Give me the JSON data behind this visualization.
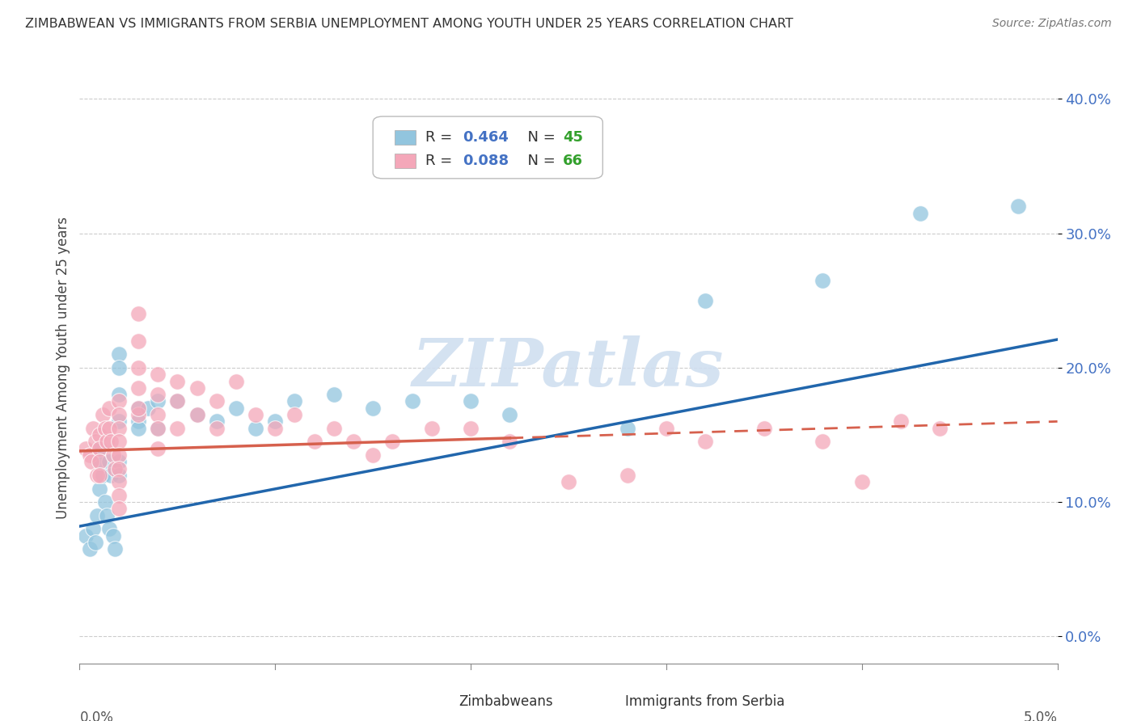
{
  "title": "ZIMBABWEAN VS IMMIGRANTS FROM SERBIA UNEMPLOYMENT AMONG YOUTH UNDER 25 YEARS CORRELATION CHART",
  "source": "Source: ZipAtlas.com",
  "ylabel": "Unemployment Among Youth under 25 years",
  "xlim": [
    0.0,
    0.05
  ],
  "ylim": [
    -0.02,
    0.42
  ],
  "ytick_vals": [
    0.0,
    0.1,
    0.2,
    0.3,
    0.4
  ],
  "ytick_labels": [
    "0.0%",
    "10.0%",
    "20.0%",
    "30.0%",
    "40.0%"
  ],
  "ytick_color": "#4472c4",
  "series1_name": "Zimbabweans",
  "series1_color": "#92c5de",
  "series1_line_color": "#2166ac",
  "series1_R": 0.464,
  "series1_N": 45,
  "series2_name": "Immigrants from Serbia",
  "series2_color": "#f4a7b9",
  "series2_line_color": "#d6604d",
  "series2_R": 0.088,
  "series2_N": 66,
  "watermark_text": "ZIPatlas",
  "watermark_color": "#d0dff0",
  "background_color": "#ffffff",
  "grid_color": "#cccccc",
  "legend_R_color": "#4472c4",
  "legend_N_color": "#33a02c",
  "trend1_y0": 0.082,
  "trend1_y1": 0.221,
  "trend2_y0": 0.138,
  "trend2_y1": 0.16,
  "trend2_solid_end": 0.022,
  "series1_x": [
    0.0003,
    0.0005,
    0.0007,
    0.0008,
    0.0009,
    0.001,
    0.001,
    0.001,
    0.0012,
    0.0013,
    0.0014,
    0.0015,
    0.0015,
    0.0016,
    0.0017,
    0.0018,
    0.002,
    0.002,
    0.002,
    0.002,
    0.002,
    0.002,
    0.003,
    0.003,
    0.003,
    0.0035,
    0.004,
    0.004,
    0.005,
    0.006,
    0.007,
    0.008,
    0.009,
    0.01,
    0.011,
    0.013,
    0.015,
    0.017,
    0.02,
    0.022,
    0.028,
    0.032,
    0.038,
    0.043,
    0.048
  ],
  "series1_y": [
    0.075,
    0.065,
    0.08,
    0.07,
    0.09,
    0.14,
    0.13,
    0.11,
    0.12,
    0.1,
    0.09,
    0.08,
    0.13,
    0.12,
    0.075,
    0.065,
    0.21,
    0.2,
    0.18,
    0.16,
    0.13,
    0.12,
    0.17,
    0.16,
    0.155,
    0.17,
    0.175,
    0.155,
    0.175,
    0.165,
    0.16,
    0.17,
    0.155,
    0.16,
    0.175,
    0.18,
    0.17,
    0.175,
    0.175,
    0.165,
    0.155,
    0.25,
    0.265,
    0.315,
    0.32
  ],
  "series2_x": [
    0.0003,
    0.0005,
    0.0006,
    0.0007,
    0.0008,
    0.0009,
    0.001,
    0.001,
    0.001,
    0.001,
    0.0012,
    0.0013,
    0.0014,
    0.0015,
    0.0015,
    0.0016,
    0.0017,
    0.0018,
    0.002,
    0.002,
    0.002,
    0.002,
    0.002,
    0.002,
    0.002,
    0.002,
    0.002,
    0.003,
    0.003,
    0.003,
    0.003,
    0.003,
    0.003,
    0.004,
    0.004,
    0.004,
    0.004,
    0.004,
    0.005,
    0.005,
    0.005,
    0.006,
    0.006,
    0.007,
    0.007,
    0.008,
    0.009,
    0.01,
    0.011,
    0.012,
    0.013,
    0.014,
    0.015,
    0.016,
    0.018,
    0.02,
    0.022,
    0.025,
    0.028,
    0.03,
    0.032,
    0.035,
    0.038,
    0.04,
    0.042,
    0.044
  ],
  "series2_y": [
    0.14,
    0.135,
    0.13,
    0.155,
    0.145,
    0.12,
    0.15,
    0.14,
    0.13,
    0.12,
    0.165,
    0.155,
    0.145,
    0.17,
    0.155,
    0.145,
    0.135,
    0.125,
    0.175,
    0.165,
    0.155,
    0.145,
    0.135,
    0.125,
    0.115,
    0.105,
    0.095,
    0.24,
    0.22,
    0.2,
    0.185,
    0.165,
    0.17,
    0.195,
    0.18,
    0.165,
    0.155,
    0.14,
    0.19,
    0.175,
    0.155,
    0.185,
    0.165,
    0.175,
    0.155,
    0.19,
    0.165,
    0.155,
    0.165,
    0.145,
    0.155,
    0.145,
    0.135,
    0.145,
    0.155,
    0.155,
    0.145,
    0.115,
    0.12,
    0.155,
    0.145,
    0.155,
    0.145,
    0.115,
    0.16,
    0.155
  ]
}
